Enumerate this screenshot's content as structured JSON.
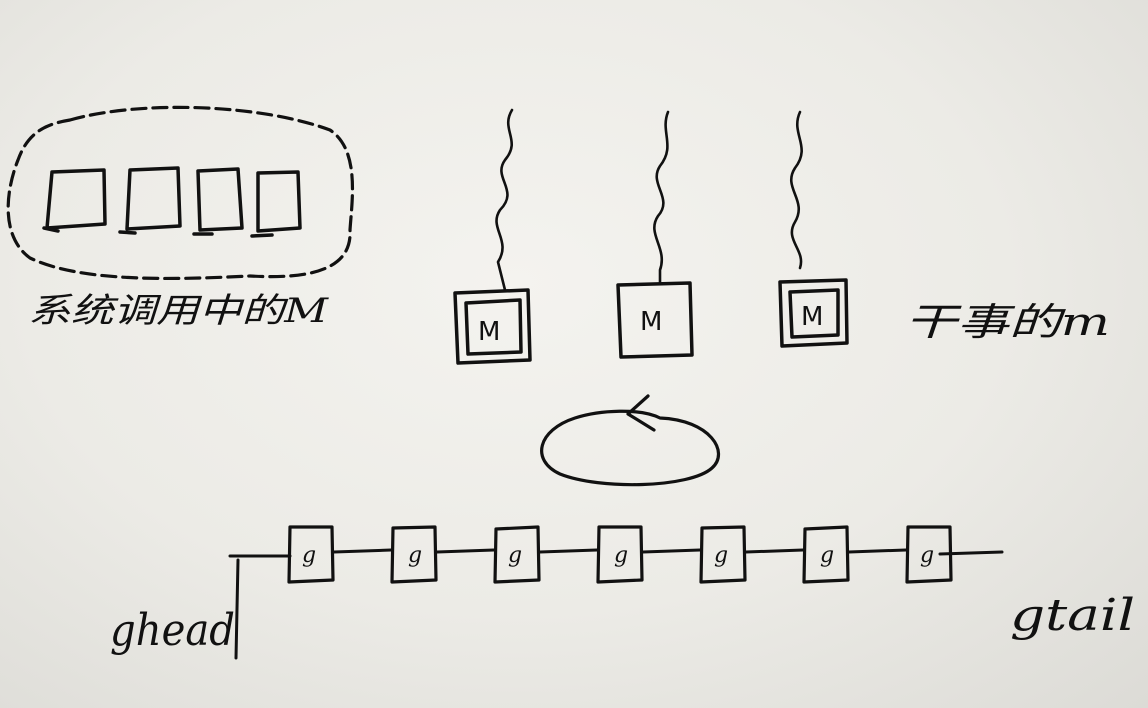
{
  "labels": {
    "syscall_m": "系统调用中的M",
    "idle_m": "干事的m",
    "ghead": "ghead",
    "gtail": "gtail"
  },
  "m_label": "M",
  "g_label": "g",
  "m_count": 3,
  "g_count": 7,
  "syscall_box_count": 4
}
